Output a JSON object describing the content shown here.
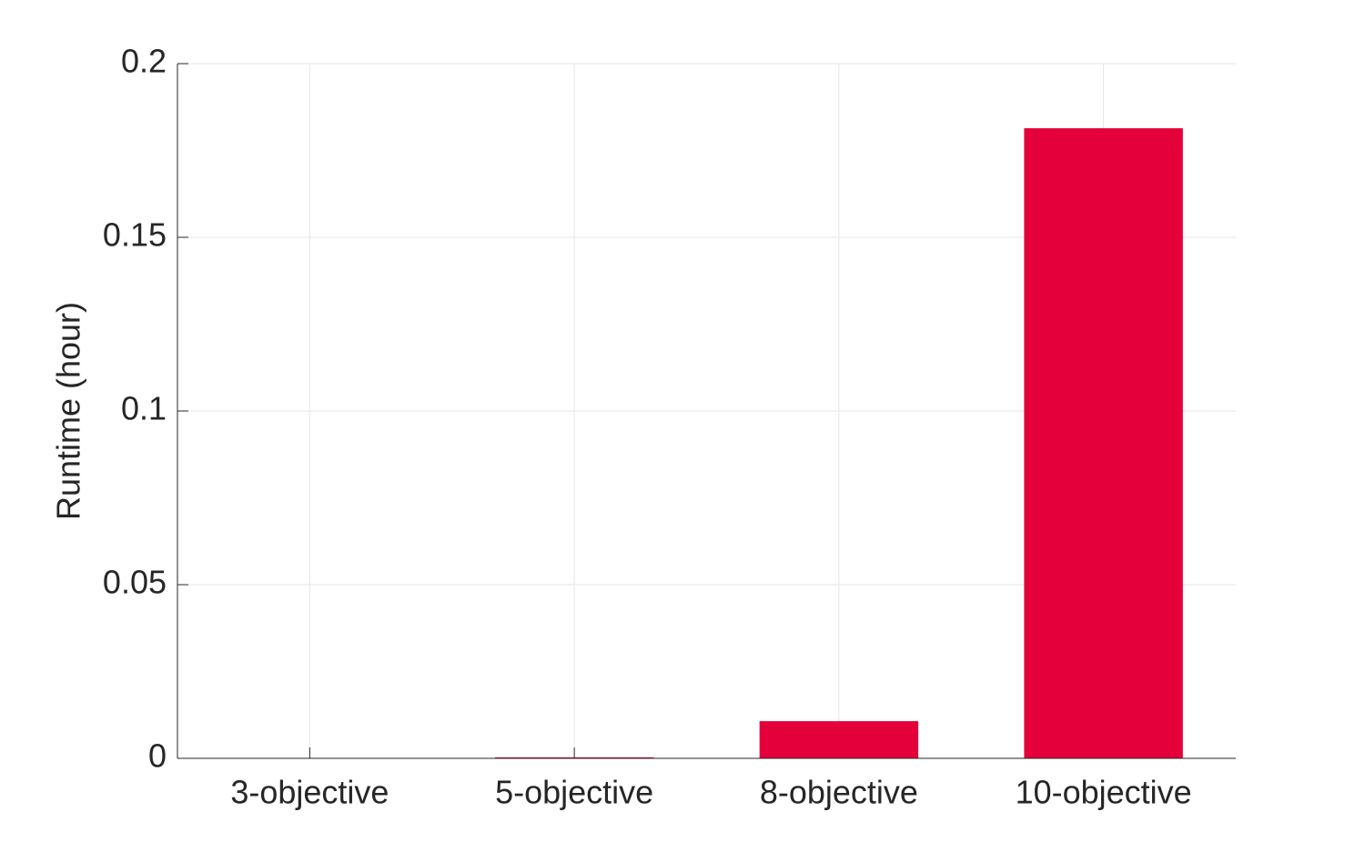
{
  "chart_data": {
    "type": "bar",
    "y_label": "Runtime (hour)",
    "categories": [
      "3-objective",
      "5-objective",
      "8-objective",
      "10-objective"
    ],
    "values": [
      0.0001,
      0.0003,
      0.0107,
      0.1814
    ],
    "color": "#e4003a",
    "ylim": [
      0,
      0.2
    ],
    "yticks": [
      0,
      0.05,
      0.1,
      0.15,
      0.2
    ],
    "grid": true
  }
}
